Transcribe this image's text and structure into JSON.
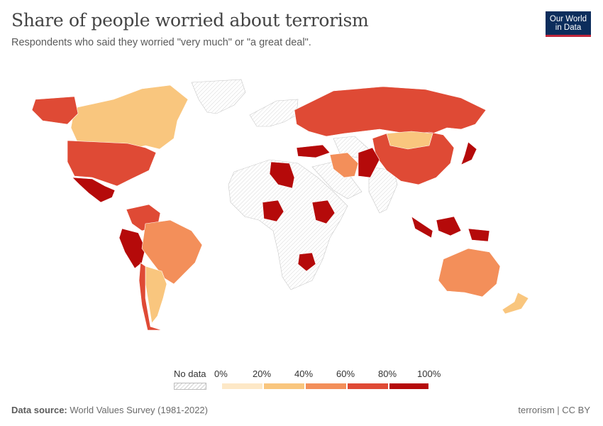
{
  "title": "Share of people worried about terrorism",
  "subtitle": "Respondents who said they worried \"very much\" or \"a great deal\".",
  "logo": {
    "line1": "Our World",
    "line2": "in Data"
  },
  "legend": {
    "nodata_label": "No data",
    "bins": [
      {
        "label": "0%",
        "color": "#fde8c7"
      },
      {
        "label": "20%",
        "color": "#f9c67e"
      },
      {
        "label": "40%",
        "color": "#f38f5a"
      },
      {
        "label": "60%",
        "color": "#df4a35"
      },
      {
        "label": "80%",
        "color": "#b50a0a"
      }
    ],
    "end_label": "100%"
  },
  "colors": {
    "light": "#fde8c7",
    "low": "#f9c67e",
    "mid": "#f38f5a",
    "high": "#df4a35",
    "top": "#b50a0a",
    "nodata_stroke": "#c8c8c8"
  },
  "regions": [
    {
      "name": "Canada",
      "bin": "low"
    },
    {
      "name": "United States",
      "bin": "high"
    },
    {
      "name": "Mexico",
      "bin": "top"
    },
    {
      "name": "Colombia",
      "bin": "high"
    },
    {
      "name": "Peru",
      "bin": "top"
    },
    {
      "name": "Brazil",
      "bin": "mid"
    },
    {
      "name": "Argentina",
      "bin": "low"
    },
    {
      "name": "Chile",
      "bin": "high"
    },
    {
      "name": "Russia",
      "bin": "high"
    },
    {
      "name": "China",
      "bin": "high"
    },
    {
      "name": "Mongolia",
      "bin": "low"
    },
    {
      "name": "Australia",
      "bin": "mid"
    },
    {
      "name": "New Zealand",
      "bin": "low"
    },
    {
      "name": "Iran",
      "bin": "mid"
    },
    {
      "name": "Pakistan",
      "bin": "top"
    },
    {
      "name": "Libya",
      "bin": "top"
    },
    {
      "name": "Nigeria",
      "bin": "top"
    },
    {
      "name": "Ethiopia",
      "bin": "top"
    },
    {
      "name": "Zimbabwe",
      "bin": "top"
    },
    {
      "name": "Indonesia",
      "bin": "top"
    },
    {
      "name": "Japan",
      "bin": "top"
    },
    {
      "name": "Turkey",
      "bin": "top"
    }
  ],
  "footer": {
    "source_label": "Data source:",
    "source": "World Values Survey (1981-2022)",
    "right": "terrorism | CC BY"
  }
}
